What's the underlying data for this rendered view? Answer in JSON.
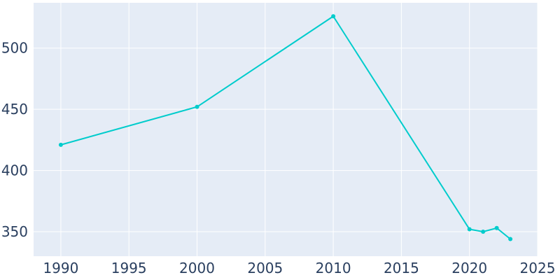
{
  "chart_data": {
    "type": "line",
    "title": "",
    "xlabel": "",
    "ylabel": "",
    "xlim": [
      1988,
      2025
    ],
    "ylim": [
      330,
      537
    ],
    "x_ticks": [
      1990,
      1995,
      2000,
      2005,
      2010,
      2015,
      2020,
      2025
    ],
    "y_ticks": [
      350,
      400,
      450,
      500
    ],
    "grid": true,
    "legend": "none",
    "colors": {
      "plot_background": "#E5ECF6",
      "grid": "#FFFFFF",
      "line": "#00CCCC",
      "tick_text": "#2a3f5f"
    },
    "series": [
      {
        "x": [
          1990,
          2000,
          2010,
          2020,
          2021,
          2022,
          2023
        ],
        "y": [
          421,
          452,
          526,
          352,
          350,
          353,
          344
        ]
      }
    ]
  }
}
